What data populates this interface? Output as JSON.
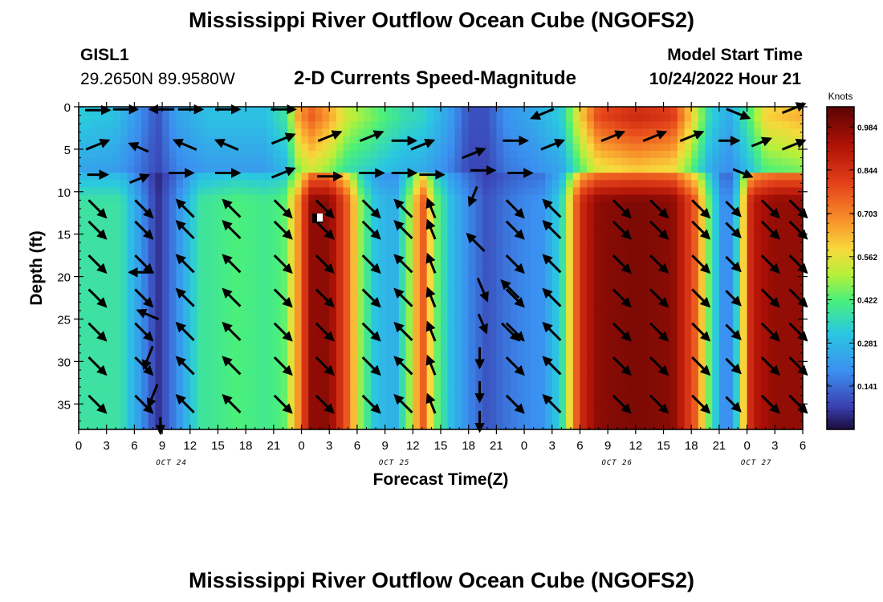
{
  "header": {
    "title": "Mississippi River Outflow Ocean Cube (NGOFS2)",
    "station_id": "GISL1",
    "station_coords": "29.2650N  89.9580W",
    "subtitle": "2-D Currents Speed-Magnitude",
    "start_label": "Model Start Time",
    "start_value": "10/24/2022 Hour 21"
  },
  "footer": {
    "title": "Mississippi River Outflow Ocean Cube (NGOFS2)"
  },
  "chart_data": {
    "type": "heatmap",
    "xlabel": "Forecast Time(Z)",
    "ylabel": "Depth (ft)",
    "x_range_hours": [
      0,
      78
    ],
    "x_tick_labels": [
      "0",
      "3",
      "6",
      "9",
      "12",
      "15",
      "18",
      "21",
      "0",
      "3",
      "6",
      "9",
      "12",
      "15",
      "18",
      "21",
      "0",
      "3",
      "6",
      "9",
      "12",
      "15",
      "18",
      "21",
      "0",
      "3",
      "6"
    ],
    "date_labels": [
      {
        "text": "OCT 24",
        "hour": 10
      },
      {
        "text": "OCT 25",
        "hour": 34
      },
      {
        "text": "OCT 26",
        "hour": 58
      },
      {
        "text": "OCT 27",
        "hour": 73
      }
    ],
    "y_range": [
      0,
      38
    ],
    "y_ticks": [
      0,
      5,
      10,
      15,
      20,
      25,
      30,
      35
    ],
    "colorbar": {
      "label": "Knots",
      "ticks": [
        "0.984",
        "0.844",
        "0.703",
        "0.562",
        "0.422",
        "0.281",
        "0.141"
      ],
      "tick_values": [
        0.984,
        0.844,
        0.703,
        0.562,
        0.422,
        0.281,
        0.141
      ],
      "range": [
        0,
        1.05
      ]
    },
    "speed_profile_upper": [
      {
        "hour": 0,
        "speed": 0.38
      },
      {
        "hour": 2,
        "speed": 0.38
      },
      {
        "hour": 4.5,
        "speed": 0.38
      },
      {
        "hour": 6.5,
        "speed": 0.22
      },
      {
        "hour": 8.5,
        "speed": 0.05
      },
      {
        "hour": 10.5,
        "speed": 0.18
      },
      {
        "hour": 13,
        "speed": 0.38
      },
      {
        "hour": 17,
        "speed": 0.42
      },
      {
        "hour": 20,
        "speed": 0.4
      },
      {
        "hour": 22,
        "speed": 0.42
      },
      {
        "hour": 23.5,
        "speed": 0.65
      },
      {
        "hour": 25,
        "speed": 0.97
      },
      {
        "hour": 27,
        "speed": 0.98
      },
      {
        "hour": 29,
        "speed": 0.75
      },
      {
        "hour": 30.5,
        "speed": 0.45
      },
      {
        "hour": 32,
        "speed": 0.3
      },
      {
        "hour": 34,
        "speed": 0.25
      },
      {
        "hour": 35.5,
        "speed": 0.45
      },
      {
        "hour": 37,
        "speed": 0.78
      },
      {
        "hour": 38.5,
        "speed": 0.45
      },
      {
        "hour": 40,
        "speed": 0.3
      },
      {
        "hour": 42,
        "speed": 0.18
      },
      {
        "hour": 44,
        "speed": 0.1
      },
      {
        "hour": 46,
        "speed": 0.15
      },
      {
        "hour": 48,
        "speed": 0.18
      },
      {
        "hour": 50,
        "speed": 0.2
      },
      {
        "hour": 52,
        "speed": 0.35
      },
      {
        "hour": 54,
        "speed": 0.85
      },
      {
        "hour": 56,
        "speed": 0.98
      },
      {
        "hour": 60,
        "speed": 1.0
      },
      {
        "hour": 64,
        "speed": 0.98
      },
      {
        "hour": 66.5,
        "speed": 0.75
      },
      {
        "hour": 68,
        "speed": 0.42
      },
      {
        "hour": 69.5,
        "speed": 0.18
      },
      {
        "hour": 70.5,
        "speed": 0.2
      },
      {
        "hour": 71.5,
        "speed": 0.55
      },
      {
        "hour": 72.5,
        "speed": 0.9
      },
      {
        "hour": 75,
        "speed": 0.97
      },
      {
        "hour": 78,
        "speed": 0.97
      }
    ],
    "speed_profile_surface": [
      {
        "hour": 0,
        "speed": 0.28
      },
      {
        "hour": 4,
        "speed": 0.25
      },
      {
        "hour": 6.5,
        "speed": 0.15
      },
      {
        "hour": 8.5,
        "speed": 0.05
      },
      {
        "hour": 10.5,
        "speed": 0.18
      },
      {
        "hour": 14,
        "speed": 0.25
      },
      {
        "hour": 20,
        "speed": 0.25
      },
      {
        "hour": 22.5,
        "speed": 0.35
      },
      {
        "hour": 23.5,
        "speed": 0.6
      },
      {
        "hour": 25,
        "speed": 0.72
      },
      {
        "hour": 27,
        "speed": 0.62
      },
      {
        "hour": 29,
        "speed": 0.48
      },
      {
        "hour": 32,
        "speed": 0.4
      },
      {
        "hour": 35,
        "speed": 0.32
      },
      {
        "hour": 37,
        "speed": 0.3
      },
      {
        "hour": 40,
        "speed": 0.18
      },
      {
        "hour": 42,
        "speed": 0.05
      },
      {
        "hour": 44,
        "speed": 0.05
      },
      {
        "hour": 46,
        "speed": 0.15
      },
      {
        "hour": 49,
        "speed": 0.2
      },
      {
        "hour": 52,
        "speed": 0.28
      },
      {
        "hour": 54,
        "speed": 0.55
      },
      {
        "hour": 56,
        "speed": 0.75
      },
      {
        "hour": 60,
        "speed": 0.82
      },
      {
        "hour": 64,
        "speed": 0.78
      },
      {
        "hour": 66.5,
        "speed": 0.5
      },
      {
        "hour": 68,
        "speed": 0.3
      },
      {
        "hour": 70,
        "speed": 0.2
      },
      {
        "hour": 72,
        "speed": 0.35
      },
      {
        "hour": 74,
        "speed": 0.55
      },
      {
        "hour": 78,
        "speed": 0.6
      }
    ],
    "layer_break_depth": 8,
    "surface_peak_depth": 1,
    "arrows": [
      {
        "hour": 2,
        "depth": 0.4,
        "dir": "E",
        "len": 3
      },
      {
        "hour": 5,
        "depth": 0.3,
        "dir": "E",
        "len": 3
      },
      {
        "hour": 9,
        "depth": 0.3,
        "dir": "W",
        "len": 3
      },
      {
        "hour": 12,
        "depth": 0.3,
        "dir": "E",
        "len": 3
      },
      {
        "hour": 16,
        "depth": 0.3,
        "dir": "E",
        "len": 3
      },
      {
        "hour": 22,
        "depth": 0.3,
        "dir": "E",
        "len": 3
      },
      {
        "hour": 50,
        "depth": 0.8,
        "dir": "WSW",
        "len": 3
      },
      {
        "hour": 71,
        "depth": 0.8,
        "dir": "ESE",
        "len": 3
      },
      {
        "hour": 77,
        "depth": 0.2,
        "dir": "ENE",
        "len": 3
      },
      {
        "hour": 2,
        "depth": 4.5,
        "dir": "ENE",
        "len": 3
      },
      {
        "hour": 6.5,
        "depth": 4.8,
        "dir": "WNW",
        "len": 2.5
      },
      {
        "hour": 11.5,
        "depth": 4.5,
        "dir": "WNW",
        "len": 3
      },
      {
        "hour": 16,
        "depth": 4.5,
        "dir": "WNW",
        "len": 3
      },
      {
        "hour": 22,
        "depth": 3.8,
        "dir": "ENE",
        "len": 3
      },
      {
        "hour": 27,
        "depth": 3.5,
        "dir": "ENE",
        "len": 3
      },
      {
        "hour": 31.5,
        "depth": 3.5,
        "dir": "ENE",
        "len": 3
      },
      {
        "hour": 35,
        "depth": 4,
        "dir": "E",
        "len": 3
      },
      {
        "hour": 37,
        "depth": 4.5,
        "dir": "ENE",
        "len": 3
      },
      {
        "hour": 42.5,
        "depth": 5.5,
        "dir": "ENE",
        "len": 3
      },
      {
        "hour": 47,
        "depth": 4,
        "dir": "E",
        "len": 3
      },
      {
        "hour": 51,
        "depth": 4.5,
        "dir": "ENE",
        "len": 3
      },
      {
        "hour": 57.5,
        "depth": 3.5,
        "dir": "ENE",
        "len": 3
      },
      {
        "hour": 62,
        "depth": 3.5,
        "dir": "ENE",
        "len": 3
      },
      {
        "hour": 66,
        "depth": 3.5,
        "dir": "ENE",
        "len": 3
      },
      {
        "hour": 70,
        "depth": 4,
        "dir": "E",
        "len": 2.5
      },
      {
        "hour": 73.5,
        "depth": 4.2,
        "dir": "ENE",
        "len": 2.5
      },
      {
        "hour": 77,
        "depth": 4.5,
        "dir": "ENE",
        "len": 3
      },
      {
        "hour": 2,
        "depth": 8,
        "dir": "E",
        "len": 2.5
      },
      {
        "hour": 6.5,
        "depth": 8.5,
        "dir": "ENE",
        "len": 2.5
      },
      {
        "hour": 11,
        "depth": 7.8,
        "dir": "E",
        "len": 3
      },
      {
        "hour": 16,
        "depth": 7.8,
        "dir": "E",
        "len": 3
      },
      {
        "hour": 22,
        "depth": 7.8,
        "dir": "ENE",
        "len": 3
      },
      {
        "hour": 27,
        "depth": 8.2,
        "dir": "E",
        "len": 3
      },
      {
        "hour": 31.5,
        "depth": 7.8,
        "dir": "E",
        "len": 3
      },
      {
        "hour": 35,
        "depth": 7.8,
        "dir": "E",
        "len": 3
      },
      {
        "hour": 38,
        "depth": 8,
        "dir": "E",
        "len": 3
      },
      {
        "hour": 43.5,
        "depth": 7.5,
        "dir": "E",
        "len": 3
      },
      {
        "hour": 47.5,
        "depth": 7.8,
        "dir": "E",
        "len": 3
      },
      {
        "hour": 71.5,
        "depth": 7.8,
        "dir": "ESE",
        "len": 2.5
      }
    ],
    "deep_columns": [
      {
        "hour": 2,
        "dir": "SE",
        "len": 3
      },
      {
        "hour": 7,
        "dir": "SE",
        "len": 3
      },
      {
        "hour": 11.5,
        "dir": "NW",
        "len": 3
      },
      {
        "hour": 16.5,
        "dir": "NW",
        "len": 3
      },
      {
        "hour": 22,
        "dir": "SE",
        "len": 3
      },
      {
        "hour": 26.5,
        "dir": "SE",
        "len": 3
      },
      {
        "hour": 31.5,
        "dir": "SE",
        "len": 3
      },
      {
        "hour": 35,
        "dir": "NW",
        "len": 3
      },
      {
        "hour": 38,
        "dir": "NNW",
        "len": 2.5
      },
      {
        "hour": 47,
        "dir": "SE",
        "len": 3
      },
      {
        "hour": 51,
        "dir": "NW",
        "len": 3
      },
      {
        "hour": 58.5,
        "dir": "SE",
        "len": 3
      },
      {
        "hour": 62.5,
        "dir": "SE",
        "len": 3
      },
      {
        "hour": 67,
        "dir": "SE",
        "len": 3
      },
      {
        "hour": 70.5,
        "dir": "SE",
        "len": 2.5
      },
      {
        "hour": 74.5,
        "dir": "SE",
        "len": 3
      },
      {
        "hour": 77.5,
        "dir": "SE",
        "len": 3
      }
    ],
    "deep_depths": [
      12,
      14.5,
      18.5,
      22.5,
      26.5,
      30.5,
      35
    ]
  }
}
